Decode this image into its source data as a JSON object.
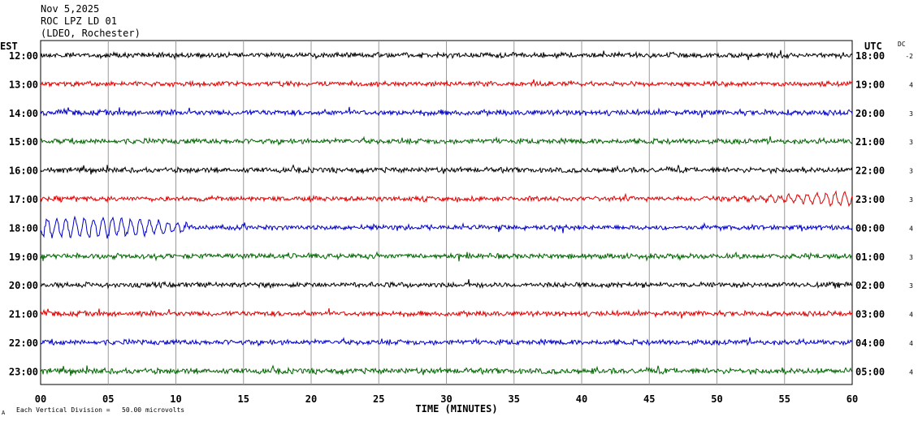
{
  "header": {
    "date": "Nov 5,2025",
    "station": "ROC LPZ LD 01",
    "location": "(LDEO, Rochester)"
  },
  "chart_data": {
    "type": "line",
    "xlabel": "TIME (MINUTES)",
    "xlim": [
      0,
      60
    ],
    "x_ticks": [
      "00",
      "05",
      "10",
      "15",
      "20",
      "25",
      "30",
      "35",
      "40",
      "45",
      "50",
      "55",
      "60"
    ],
    "left_axis_label": "EST",
    "right_axis_label": "UTC",
    "dc_label": "DC",
    "footnote": "Each Vertical Division =   50.00 microvolts",
    "footnote_mark": "A",
    "grid": true,
    "trace_colors": [
      "#000000",
      "#e00000",
      "#0000c8",
      "#006400"
    ],
    "rows": [
      {
        "est": "12:00",
        "utc": "18:00",
        "dc": "-2",
        "color": "#000000",
        "amp": 3.0,
        "events": []
      },
      {
        "est": "13:00",
        "utc": "19:00",
        "dc": "4",
        "color": "#e00000",
        "amp": 2.8,
        "events": []
      },
      {
        "est": "14:00",
        "utc": "20:00",
        "dc": "3",
        "color": "#0000c8",
        "amp": 3.2,
        "events": []
      },
      {
        "est": "15:00",
        "utc": "21:00",
        "dc": "3",
        "color": "#006400",
        "amp": 3.0,
        "events": []
      },
      {
        "est": "16:00",
        "utc": "22:00",
        "dc": "3",
        "color": "#000000",
        "amp": 3.0,
        "events": []
      },
      {
        "est": "17:00",
        "utc": "23:00",
        "dc": "3",
        "color": "#e00000",
        "amp": 2.8,
        "events": [
          {
            "t0": 49.5,
            "t1": 60,
            "amp": 9
          }
        ]
      },
      {
        "est": "18:00",
        "utc": "00:00",
        "dc": "4",
        "color": "#0000c8",
        "amp": 2.8,
        "events": [
          {
            "t0": 0,
            "t1": 11,
            "amp": 13
          }
        ]
      },
      {
        "est": "19:00",
        "utc": "01:00",
        "dc": "3",
        "color": "#006400",
        "amp": 3.0,
        "events": []
      },
      {
        "est": "20:00",
        "utc": "02:00",
        "dc": "3",
        "color": "#000000",
        "amp": 3.0,
        "events": []
      },
      {
        "est": "21:00",
        "utc": "03:00",
        "dc": "4",
        "color": "#e00000",
        "amp": 3.0,
        "events": []
      },
      {
        "est": "22:00",
        "utc": "04:00",
        "dc": "4",
        "color": "#0000c8",
        "amp": 3.0,
        "events": []
      },
      {
        "est": "23:00",
        "utc": "05:00",
        "dc": "4",
        "color": "#006400",
        "amp": 3.2,
        "events": []
      }
    ]
  }
}
